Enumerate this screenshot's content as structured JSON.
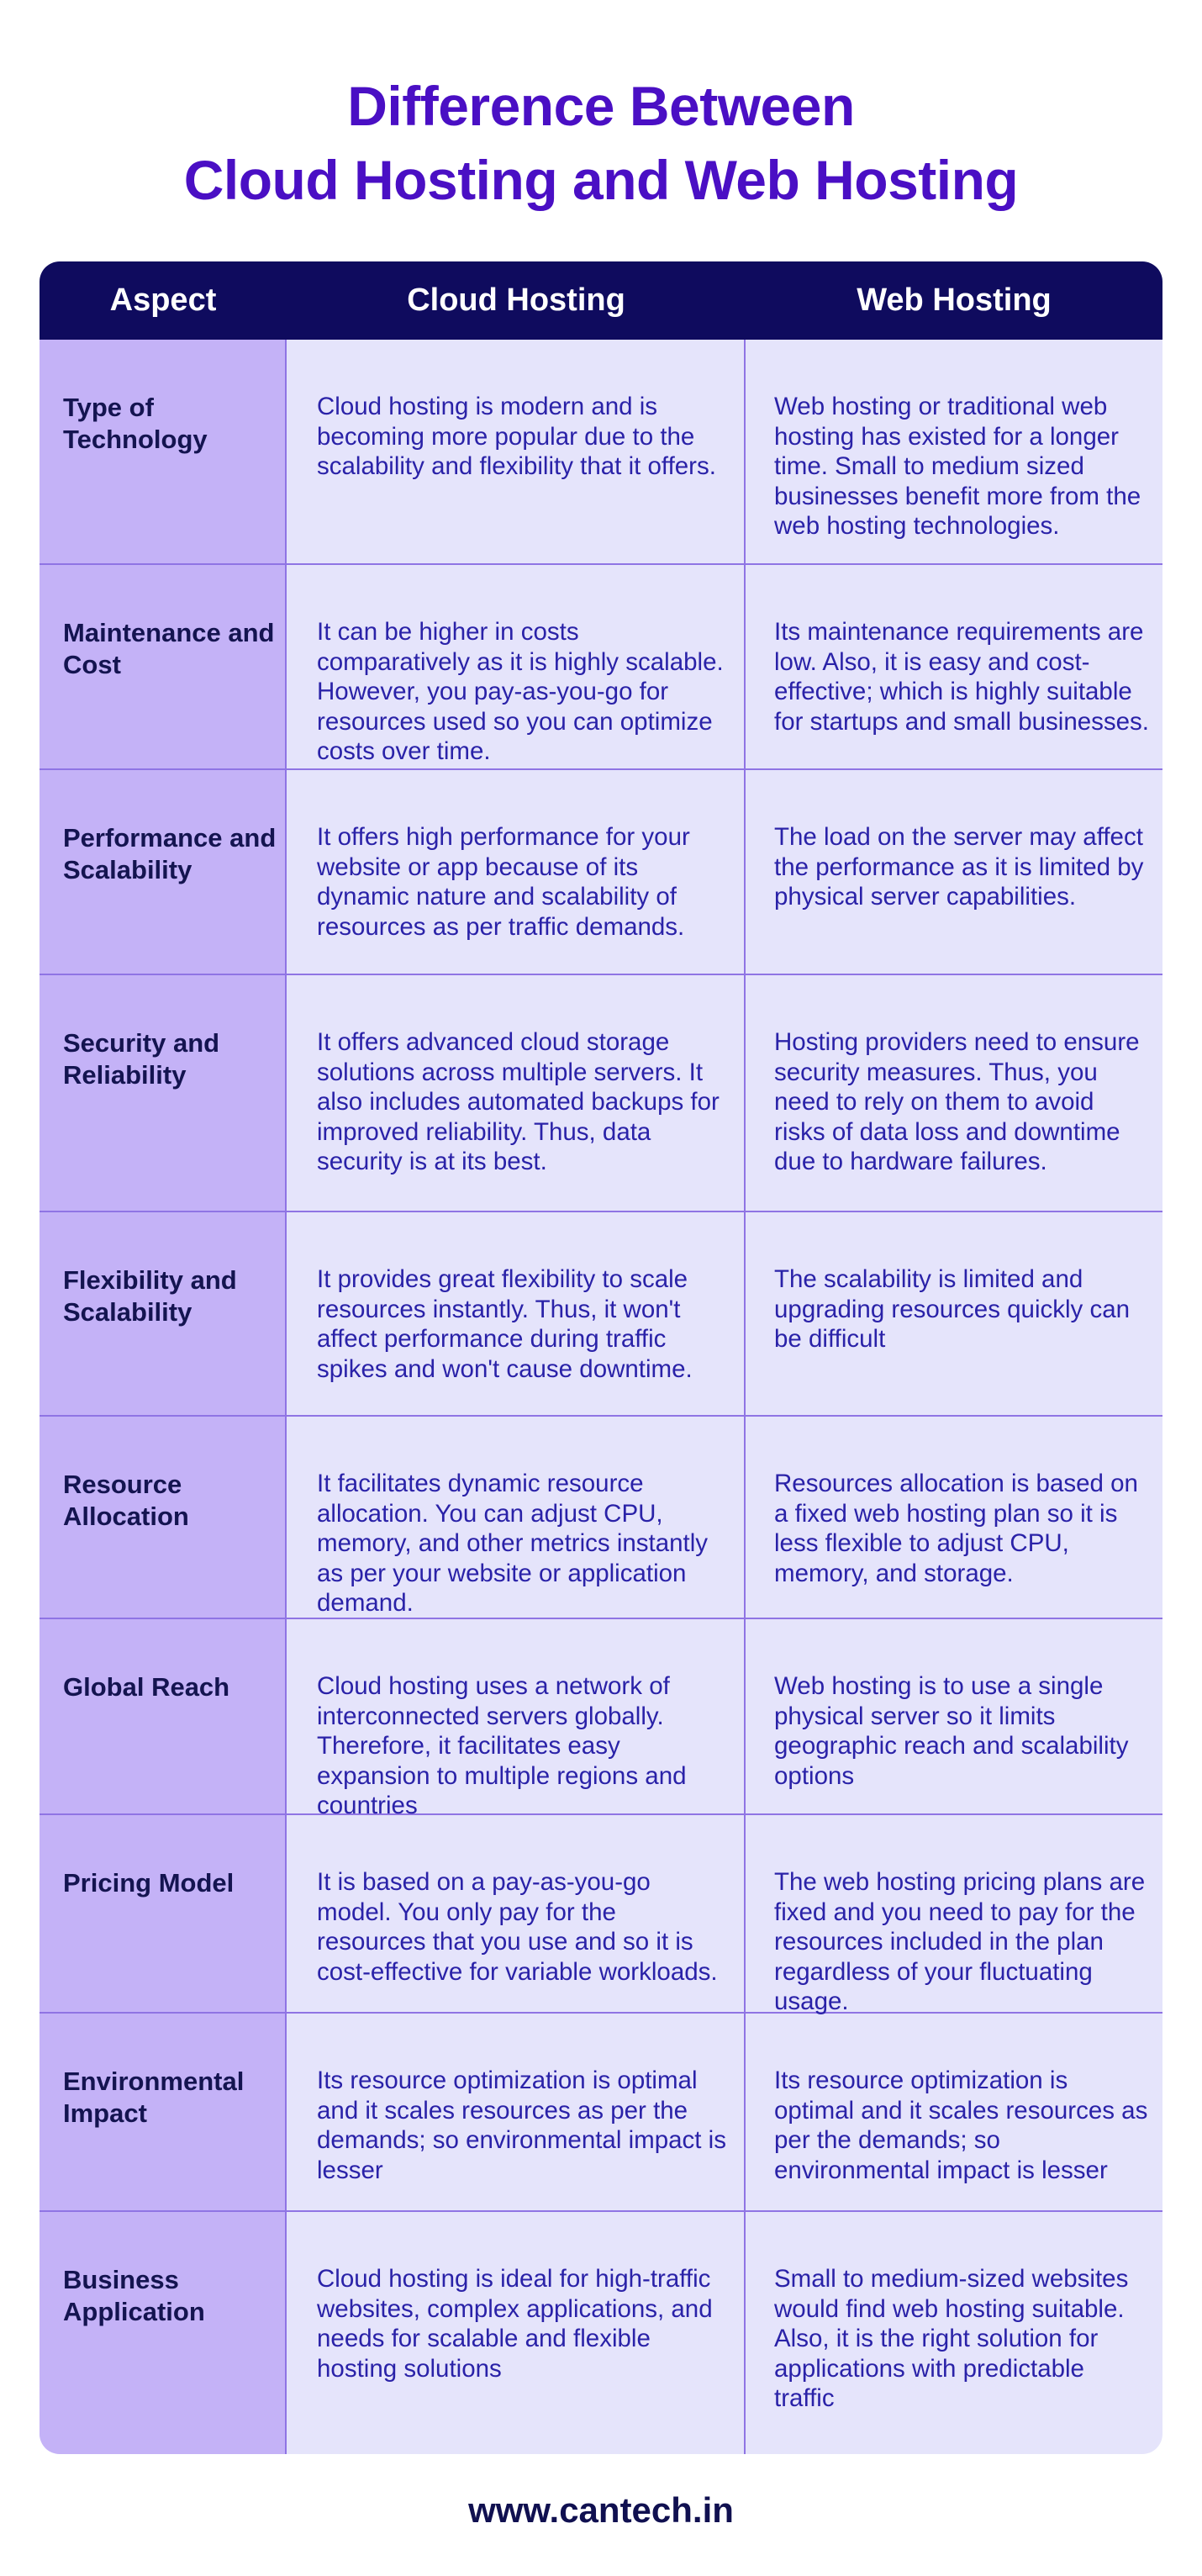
{
  "title": {
    "line1": "Difference Between",
    "line2": "Cloud Hosting and Web Hosting"
  },
  "table": {
    "headers": [
      "Aspect",
      "Cloud Hosting",
      "Web Hosting"
    ],
    "rows": [
      {
        "aspect": "Type of Technology",
        "cloud": "Cloud hosting is modern and is becoming more popular due to the scalability and flexibility that it offers.",
        "web": "Web hosting or traditional web hosting has existed for a longer time. Small to medium sized businesses benefit more from the web hosting technologies."
      },
      {
        "aspect": "Maintenance and Cost",
        "cloud": "It can be higher in costs comparatively as it is highly scalable. However, you pay-as-you-go for resources used so you can optimize costs over time.",
        "web": "Its maintenance requirements are low. Also, it is easy and cost-effective; which is highly suitable for startups and small businesses."
      },
      {
        "aspect": "Performance and Scalability",
        "cloud": "It offers high performance for your website or app because of its dynamic nature and scalability of resources as per traffic demands.",
        "web": "The load on the server may affect the performance as it is limited by physical server capabilities."
      },
      {
        "aspect": "Security and Reliability",
        "cloud": "It offers advanced cloud storage solutions across multiple servers. It also includes automated backups for improved reliability. Thus, data security is at its best.",
        "web": "Hosting providers need to ensure security measures. Thus, you need to rely on them to avoid risks of data loss and downtime due to hardware failures."
      },
      {
        "aspect": "Flexibility and Scalability",
        "cloud": "It provides great flexibility to scale resources instantly. Thus, it won't affect performance during traffic spikes and won't cause downtime.",
        "web": "The scalability is limited and upgrading resources quickly can be difficult"
      },
      {
        "aspect": "Resource Allocation",
        "cloud": "It facilitates dynamic resource allocation. You can adjust CPU, memory, and other metrics instantly as per your website or application demand.",
        "web": "Resources allocation is based on a fixed web hosting plan so it is less flexible to adjust CPU, memory, and storage."
      },
      {
        "aspect": "Global Reach",
        "cloud": "Cloud hosting uses a network of interconnected servers globally. Therefore, it facilitates easy expansion to multiple regions and countries",
        "web": "Web hosting is to use a single physical server so it limits geographic reach and scalability options"
      },
      {
        "aspect": "Pricing Model",
        "cloud": "It is based on a pay-as-you-go model. You only pay for the resources that you use and so it is cost-effective for variable workloads.",
        "web": "The web hosting pricing plans are fixed and you need to pay for the resources included in the plan regardless of your fluctuating usage."
      },
      {
        "aspect": "Environmental Impact",
        "cloud": "Its resource optimization is optimal and it scales resources as per the demands; so environmental impact is lesser",
        "web": "Its resource optimization is optimal and it scales resources as per the demands; so environmental impact is lesser"
      },
      {
        "aspect": "Business Application",
        "cloud": "Cloud hosting is ideal for high-traffic websites, complex applications, and needs for scalable and flexible hosting solutions",
        "web": "Small to medium-sized websites would find web hosting suitable. Also, it is the right solution for applications with predictable traffic"
      }
    ]
  },
  "footer": {
    "url": "www.cantech.in"
  }
}
